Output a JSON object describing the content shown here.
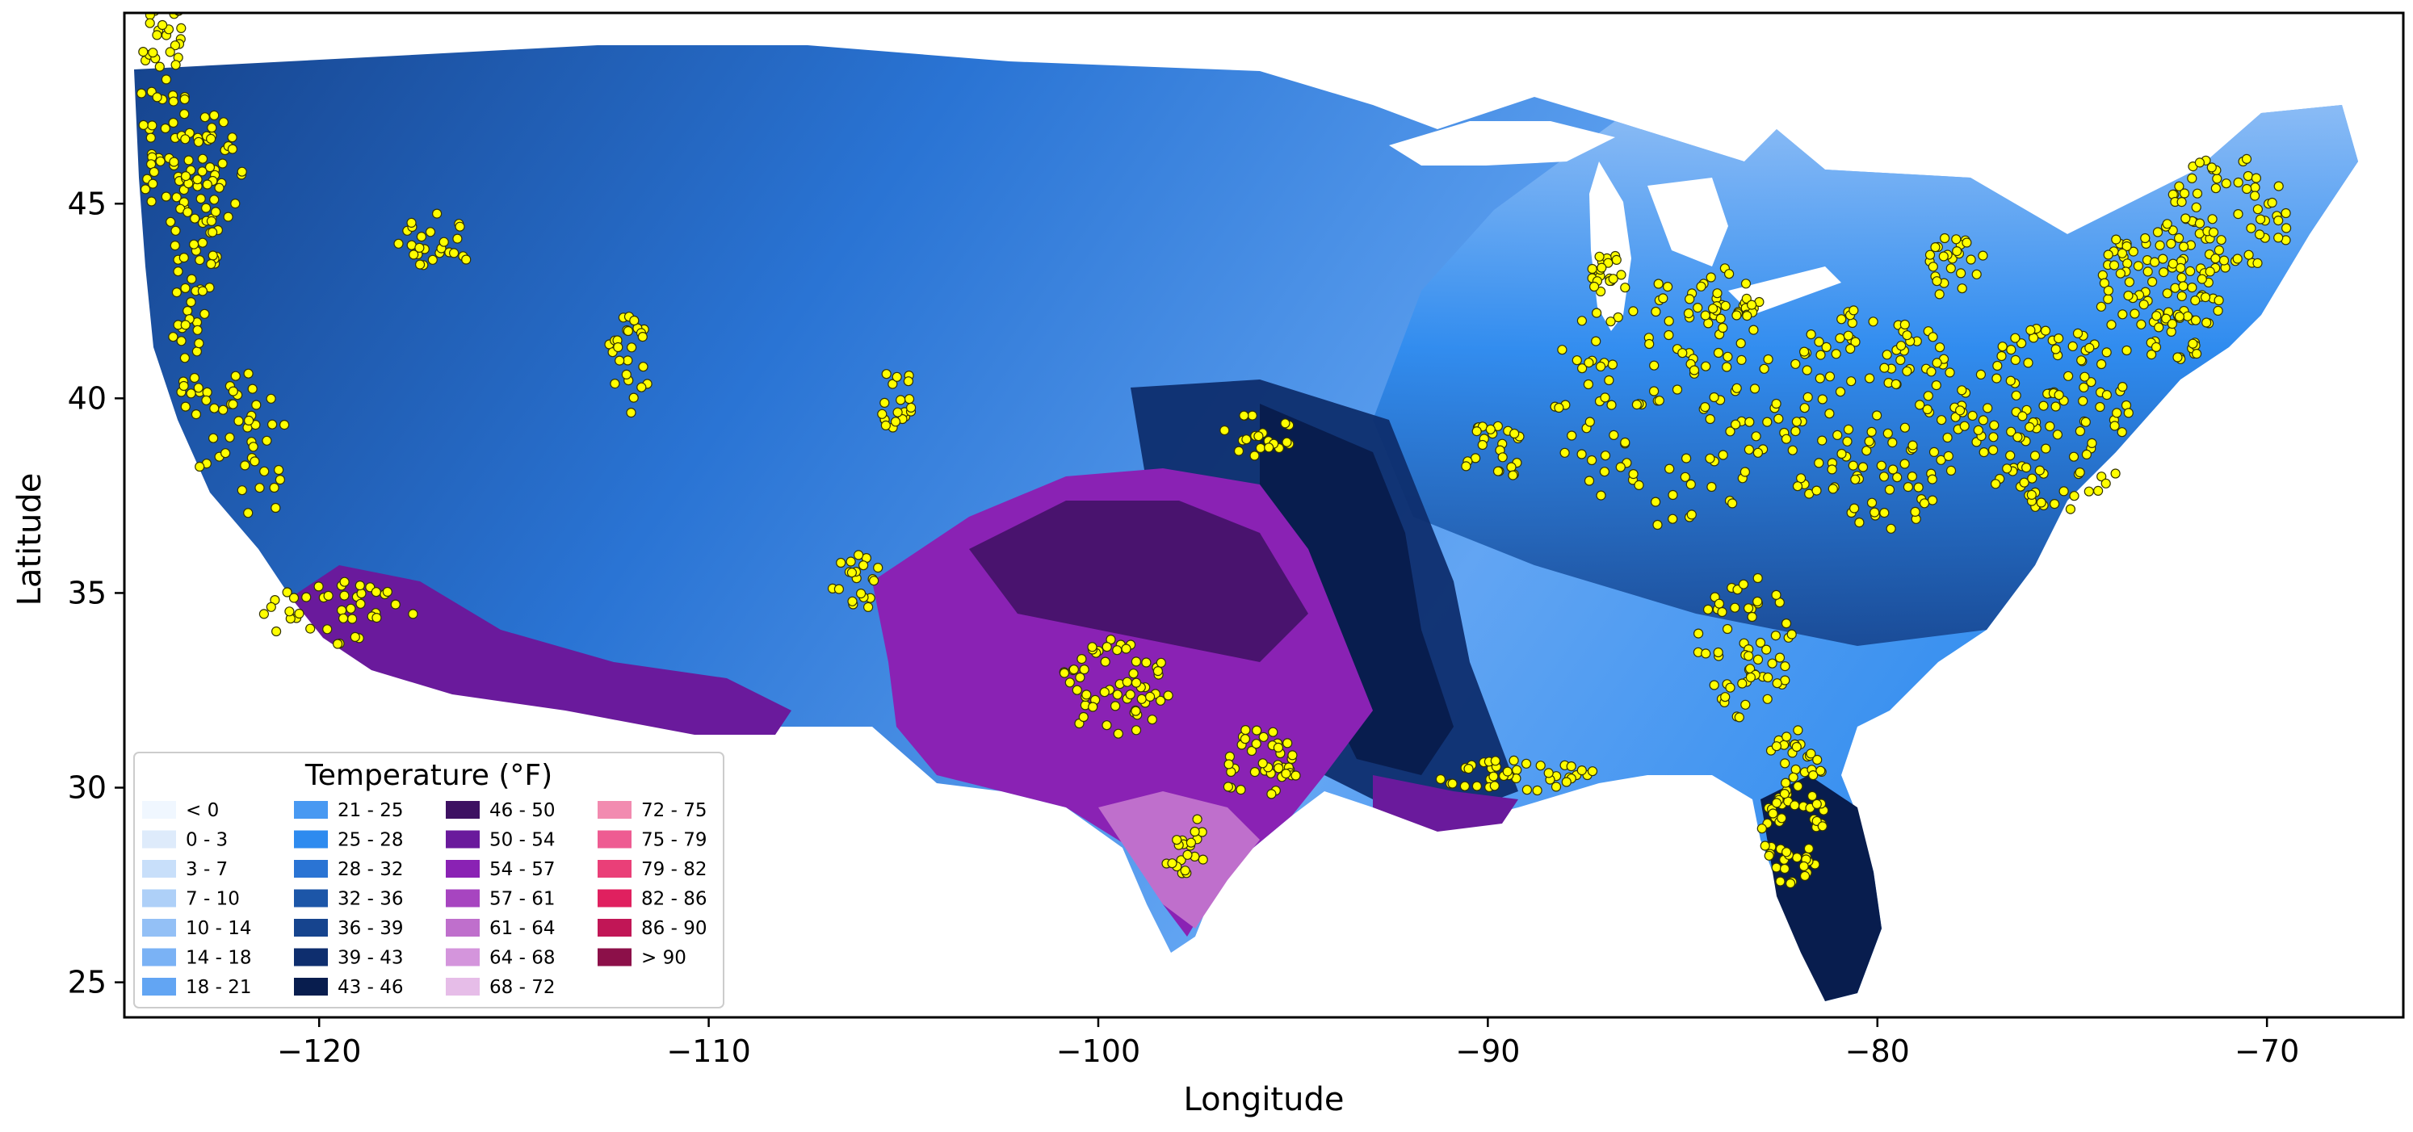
{
  "map": {
    "xlabel": "Longitude",
    "ylabel": "Latitude",
    "x_ticks": [
      {
        "value": -120,
        "label": "−120"
      },
      {
        "value": -110,
        "label": "−110"
      },
      {
        "value": -100,
        "label": "−100"
      },
      {
        "value": -90,
        "label": "−90"
      },
      {
        "value": -80,
        "label": "−80"
      },
      {
        "value": -70,
        "label": "−70"
      }
    ],
    "y_ticks": [
      {
        "value": 25,
        "label": "25"
      },
      {
        "value": 30,
        "label": "30"
      },
      {
        "value": 35,
        "label": "35"
      },
      {
        "value": 40,
        "label": "40"
      },
      {
        "value": 45,
        "label": "45"
      }
    ],
    "xlim": [
      -125.0,
      -66.5
    ],
    "ylim": [
      24.1,
      49.9
    ],
    "grid": false,
    "points_color": "#ffff00",
    "points_edge_color": "#333300"
  },
  "legend": {
    "title": "Temperature (°F)",
    "placement": "lower-left",
    "items": [
      {
        "label": "< 0",
        "color": "#f0f7ff"
      },
      {
        "label": "0 - 3",
        "color": "#deebfb"
      },
      {
        "label": "3 - 7",
        "color": "#c8dffa"
      },
      {
        "label": "7 - 10",
        "color": "#aed0f8"
      },
      {
        "label": "10 - 14",
        "color": "#93c0f6"
      },
      {
        "label": "14 - 18",
        "color": "#7ab2f5"
      },
      {
        "label": "18 - 21",
        "color": "#62a5f3"
      },
      {
        "label": "21 - 25",
        "color": "#4899f2"
      },
      {
        "label": "25 - 28",
        "color": "#2e8bef"
      },
      {
        "label": "28 - 32",
        "color": "#2a74d4"
      },
      {
        "label": "32 - 36",
        "color": "#1c56a8"
      },
      {
        "label": "36 - 39",
        "color": "#16448e"
      },
      {
        "label": "39 - 43",
        "color": "#0e2e6e"
      },
      {
        "label": "43 - 46",
        "color": "#081d4e"
      },
      {
        "label": "46 - 50",
        "color": "#3d1162"
      },
      {
        "label": "50 - 54",
        "color": "#6a1a9c"
      },
      {
        "label": "54 - 57",
        "color": "#8a22b4"
      },
      {
        "label": "57 - 61",
        "color": "#a745c0"
      },
      {
        "label": "61 - 64",
        "color": "#bf6fcc"
      },
      {
        "label": "64 - 68",
        "color": "#d495dc"
      },
      {
        "label": "68 - 72",
        "color": "#e6bde8"
      },
      {
        "label": "72 - 75",
        "color": "#f28bb0"
      },
      {
        "label": "75 - 79",
        "color": "#ee5c92"
      },
      {
        "label": "79 - 82",
        "color": "#ea3f78"
      },
      {
        "label": "82 - 86",
        "color": "#e0205f"
      },
      {
        "label": "86 - 90",
        "color": "#c11656"
      },
      {
        "label": "> 90",
        "color": "#8c1049"
      }
    ]
  }
}
